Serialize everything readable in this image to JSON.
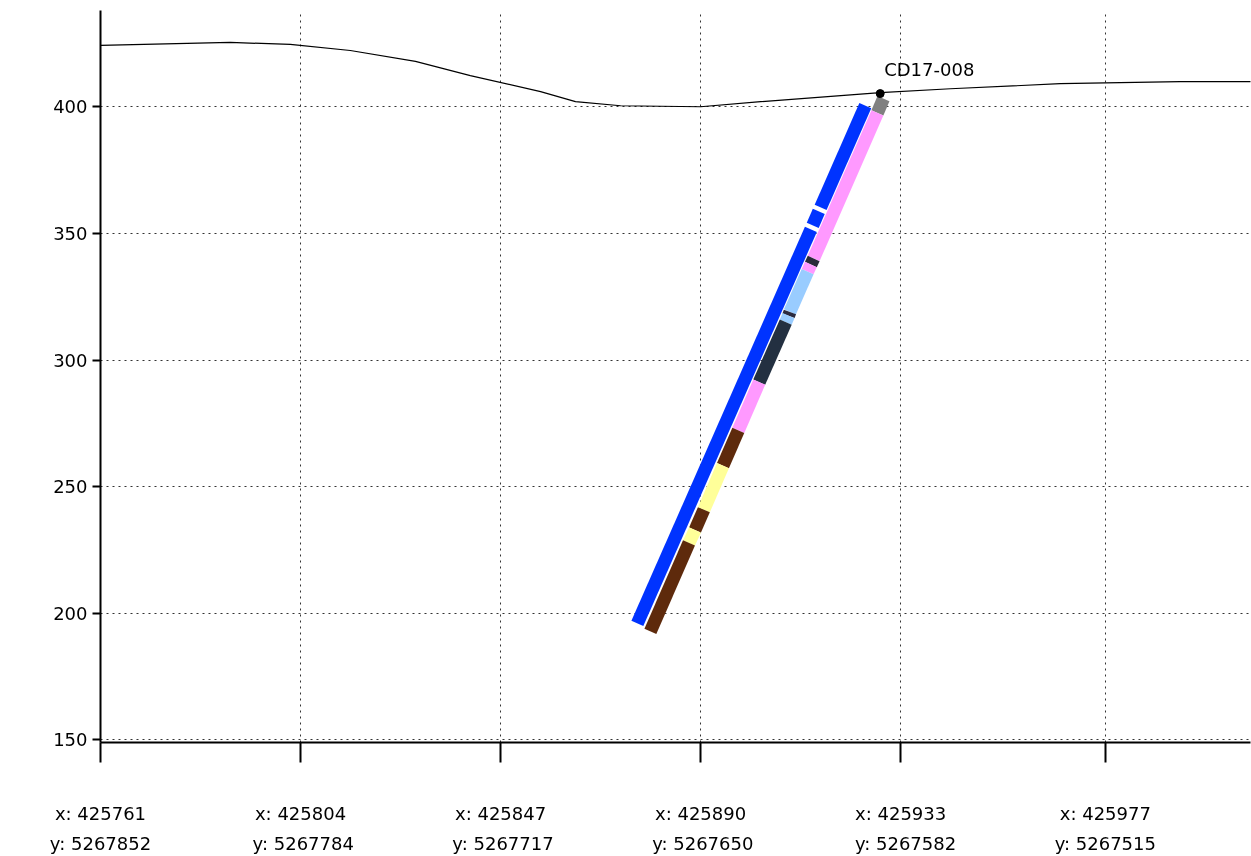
{
  "chart_data": {
    "type": "line",
    "xlim": [
      425761,
      426008.2
    ],
    "ylim": [
      149,
      438
    ],
    "xticks": [
      {
        "value": 425761,
        "label": "x: 425761"
      },
      {
        "value": 425804,
        "label": "x: 425804"
      },
      {
        "value": 425847,
        "label": "x: 425847"
      },
      {
        "value": 425890,
        "label": "x: 425890"
      },
      {
        "value": 425933,
        "label": "x: 425933"
      },
      {
        "value": 425977,
        "label": "x: 425977"
      }
    ],
    "x2lim": [
      5267852,
      5267466.3
    ],
    "x2ticks": [
      {
        "value": 5267852,
        "label": "y: 5267852"
      },
      {
        "value": 5267784,
        "label": "y: 5267784"
      },
      {
        "value": 5267717,
        "label": "y: 5267717"
      },
      {
        "value": 5267650,
        "label": "y: 5267650"
      },
      {
        "value": 5267582,
        "label": "y: 5267582"
      },
      {
        "value": 5267515,
        "label": "y: 5267515"
      }
    ],
    "yticks": [
      150,
      200,
      250,
      300,
      350,
      400
    ],
    "grid": true,
    "series": [
      {
        "color": "#000000",
        "x": [
          425761,
          425788.9,
          425801.8,
          425814.7,
          425828.7,
          425840.5,
          425855.6,
          425863.1,
          425872.8,
          425890.0,
          425902.9,
          425928.6,
          425943.7,
          425967.3,
          425993.1,
          426008.2
        ],
        "values": [
          424.2,
          425.4,
          424.6,
          422.2,
          417.9,
          412.3,
          406.0,
          402.0,
          400.4,
          400.0,
          402.0,
          405.6,
          407.1,
          409.1,
          409.9,
          409.9
        ]
      },
      {
        "color": "#0033ff",
        "x": [
          425925.4,
          425915.8
        ],
        "values": [
          400.4,
          360.3
        ]
      },
      {
        "color": "#0033ff",
        "x": [
          425915.4,
          425914.1
        ],
        "values": [
          358.7,
          353.2
        ]
      },
      {
        "color": "#0033ff",
        "x": [
          425913.7,
          425876.4
        ],
        "values": [
          351.6,
          196.0
        ]
      },
      {
        "color": "#808080",
        "x": [
          425929.3,
          425928.0
        ],
        "values": [
          403.2,
          397.6
        ]
      },
      {
        "color": "#ff99ff",
        "x": [
          425928.0,
          425914.3
        ],
        "values": [
          397.6,
          340.1
        ]
      },
      {
        "color": "#2a2a3a",
        "x": [
          425914.3,
          425913.7
        ],
        "values": [
          340.1,
          337.7
        ]
      },
      {
        "color": "#ff99ff",
        "x": [
          425913.7,
          425913.0
        ],
        "values": [
          337.7,
          334.9
        ]
      },
      {
        "color": "#99ccff",
        "x": [
          425913.0,
          425909.2
        ],
        "values": [
          334.9,
          319.0
        ]
      },
      {
        "color": "#2b2b40",
        "x": [
          425909.2,
          425908.9
        ],
        "values": [
          319.0,
          317.5
        ]
      },
      {
        "color": "#99ccff",
        "x": [
          425908.9,
          425908.3
        ],
        "values": [
          317.5,
          315.0
        ]
      },
      {
        "color": "#233041",
        "x": [
          425908.3,
          425902.6
        ],
        "values": [
          315.0,
          291.3
        ]
      },
      {
        "color": "#ff99ff",
        "x": [
          425902.6,
          425898.1
        ],
        "values": [
          291.3,
          272.2
        ]
      },
      {
        "color": "#5e2a0c",
        "x": [
          425898.1,
          425894.8
        ],
        "values": [
          272.2,
          258.3
        ]
      },
      {
        "color": "#ffff99",
        "x": [
          425894.8,
          425890.7
        ],
        "values": [
          258.3,
          240.9
        ]
      },
      {
        "color": "#5e2a0c",
        "x": [
          425890.7,
          425888.8
        ],
        "values": [
          240.9,
          232.9
        ]
      },
      {
        "color": "#ffff99",
        "x": [
          425888.8,
          425887.5
        ],
        "values": [
          232.9,
          227.8
        ]
      },
      {
        "color": "#5e2a0c",
        "x": [
          425887.5,
          425879.2
        ],
        "values": [
          227.8,
          192.9
        ]
      },
      {
        "type": "scatter",
        "color": "#000000",
        "marker": "circle",
        "x": [
          425928.6
        ],
        "values": [
          405.2
        ]
      }
    ],
    "annotations": [
      {
        "text": "CD17-008",
        "x": 425928.6,
        "y": 405.2
      }
    ]
  }
}
